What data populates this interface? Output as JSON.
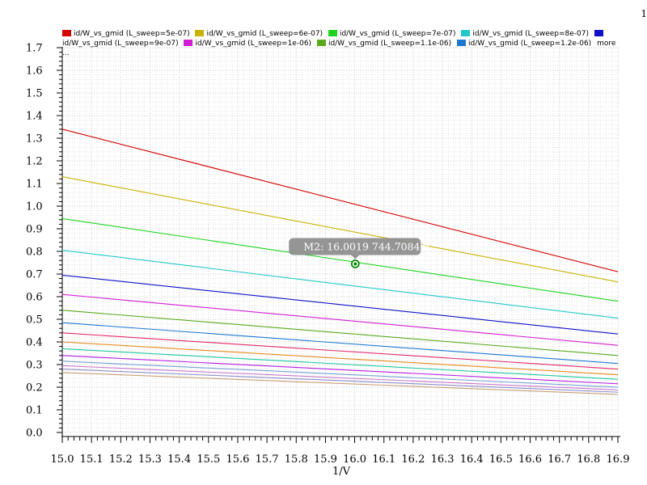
{
  "page": {
    "corner_label": "1"
  },
  "marker": {
    "label": "M2: 16.0019 744.7084m",
    "x": 16.0019,
    "y": 0.7447084
  },
  "legend": {
    "more_label": "more ..."
  },
  "chart_data": {
    "type": "line",
    "title": "",
    "xlabel": "1/V",
    "ylabel": "",
    "xlim": [
      15.0,
      16.9
    ],
    "ylim": [
      0.0,
      1.7
    ],
    "xticks": [
      "15.0",
      "15.1",
      "15.2",
      "15.3",
      "15.4",
      "15.5",
      "15.6",
      "15.7",
      "15.8",
      "15.9",
      "16.0",
      "16.1",
      "16.2",
      "16.3",
      "16.4",
      "16.5",
      "16.6",
      "16.7",
      "16.8",
      "16.9"
    ],
    "yticks": [
      "0.0",
      "0.1",
      "0.2",
      "0.3",
      "0.4",
      "0.5",
      "0.6",
      "0.7",
      "0.8",
      "0.9",
      "1.0",
      "1.1",
      "1.2",
      "1.3",
      "1.4",
      "1.5",
      "1.6",
      "1.7"
    ],
    "grid": true,
    "legend_position": "top",
    "series": [
      {
        "name": "id/W_vs_gmid (L_sweep=5e-07)",
        "color": "#d40000",
        "x": [
          15.0,
          16.9
        ],
        "y": [
          1.34,
          0.71
        ],
        "legend": true
      },
      {
        "name": "id/W_vs_gmid (L_sweep=6e-07)",
        "color": "#c8b400",
        "x": [
          15.0,
          16.9
        ],
        "y": [
          1.13,
          0.665
        ],
        "legend": true
      },
      {
        "name": "id/W_vs_gmid (L_sweep=7e-07)",
        "color": "#1ed21e",
        "x": [
          15.0,
          16.9
        ],
        "y": [
          0.945,
          0.58
        ],
        "legend": true
      },
      {
        "name": "id/W_vs_gmid (L_sweep=8e-07)",
        "color": "#22c8c8",
        "x": [
          15.0,
          16.9
        ],
        "y": [
          0.805,
          0.505
        ],
        "legend": true
      },
      {
        "name": "id/W_vs_gmid (L_sweep=9e-07)",
        "color": "#1010c8",
        "x": [
          15.0,
          16.9
        ],
        "y": [
          0.695,
          0.435
        ],
        "legend": true
      },
      {
        "name": "id/W_vs_gmid (L_sweep=1e-06)",
        "color": "#d21ed2",
        "x": [
          15.0,
          16.9
        ],
        "y": [
          0.61,
          0.385
        ],
        "legend": true
      },
      {
        "name": "id/W_vs_gmid (L_sweep=1.1e-06)",
        "color": "#5aaa1e",
        "x": [
          15.0,
          16.9
        ],
        "y": [
          0.54,
          0.34
        ],
        "legend": true
      },
      {
        "name": "id/W_vs_gmid (L_sweep=1.2e-06)",
        "color": "#1e78d2",
        "x": [
          15.0,
          16.9
        ],
        "y": [
          0.485,
          0.305
        ],
        "legend": true
      },
      {
        "name": "",
        "color": "#e6286e",
        "x": [
          15.0,
          16.9
        ],
        "y": [
          0.44,
          0.28
        ],
        "legend": false
      },
      {
        "name": "",
        "color": "#e68c1e",
        "x": [
          15.0,
          16.9
        ],
        "y": [
          0.4,
          0.255
        ],
        "legend": false
      },
      {
        "name": "",
        "color": "#1ec8a0",
        "x": [
          15.0,
          16.9
        ],
        "y": [
          0.37,
          0.235
        ],
        "legend": false
      },
      {
        "name": "",
        "color": "#b41ee6",
        "x": [
          15.0,
          16.9
        ],
        "y": [
          0.34,
          0.215
        ],
        "legend": false
      },
      {
        "name": "",
        "color": "#78a0d2",
        "x": [
          15.0,
          16.9
        ],
        "y": [
          0.315,
          0.2
        ],
        "legend": false
      },
      {
        "name": "",
        "color": "#c878c8",
        "x": [
          15.0,
          16.9
        ],
        "y": [
          0.295,
          0.188
        ],
        "legend": false
      },
      {
        "name": "",
        "color": "#8c8cc8",
        "x": [
          15.0,
          16.9
        ],
        "y": [
          0.28,
          0.178
        ],
        "legend": false
      },
      {
        "name": "",
        "color": "#c8a078",
        "x": [
          15.0,
          16.9
        ],
        "y": [
          0.265,
          0.168
        ],
        "legend": false
      }
    ]
  }
}
